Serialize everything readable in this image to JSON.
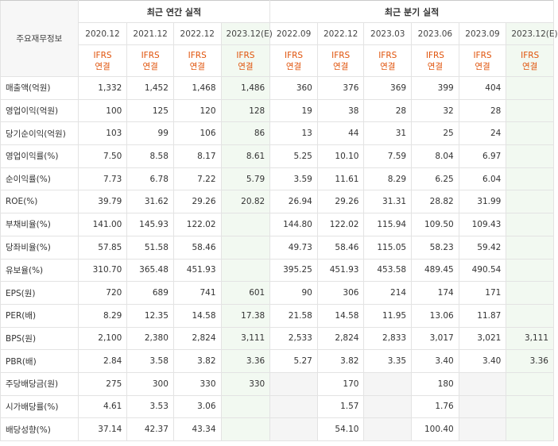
{
  "header": {
    "corner_label": "주요재무정보",
    "annual_group": "최근 연간 실적",
    "quarter_group": "최근 분기 실적",
    "periods": [
      "2020.12",
      "2021.12",
      "2022.12",
      "2023.12(E)",
      "2022.09",
      "2022.12",
      "2023.03",
      "2023.06",
      "2023.09",
      "2023.12(E)"
    ],
    "standard_top": "IFRS",
    "standard_bottom": "연결"
  },
  "rows": [
    {
      "label": "매출액(억원)",
      "values": [
        "1,332",
        "1,452",
        "1,468",
        "1,486",
        "360",
        "376",
        "369",
        "399",
        "404",
        ""
      ]
    },
    {
      "label": "영업이익(억원)",
      "values": [
        "100",
        "125",
        "120",
        "128",
        "19",
        "38",
        "28",
        "32",
        "28",
        ""
      ]
    },
    {
      "label": "당기순이익(억원)",
      "values": [
        "103",
        "99",
        "106",
        "86",
        "13",
        "44",
        "31",
        "25",
        "24",
        ""
      ]
    },
    {
      "label": "영업이익률(%)",
      "values": [
        "7.50",
        "8.58",
        "8.17",
        "8.61",
        "5.25",
        "10.10",
        "7.59",
        "8.04",
        "6.97",
        ""
      ]
    },
    {
      "label": "순이익률(%)",
      "values": [
        "7.73",
        "6.78",
        "7.22",
        "5.79",
        "3.59",
        "11.61",
        "8.29",
        "6.25",
        "6.04",
        ""
      ]
    },
    {
      "label": "ROE(%)",
      "values": [
        "39.79",
        "31.62",
        "29.26",
        "20.82",
        "26.94",
        "29.26",
        "31.31",
        "28.82",
        "31.99",
        ""
      ]
    },
    {
      "label": "부채비율(%)",
      "values": [
        "141.00",
        "145.93",
        "122.02",
        "",
        "144.80",
        "122.02",
        "115.94",
        "109.50",
        "109.43",
        ""
      ]
    },
    {
      "label": "당좌비율(%)",
      "values": [
        "57.85",
        "51.58",
        "58.46",
        "",
        "49.73",
        "58.46",
        "115.05",
        "58.23",
        "59.42",
        ""
      ]
    },
    {
      "label": "유보율(%)",
      "values": [
        "310.70",
        "365.48",
        "451.93",
        "",
        "395.25",
        "451.93",
        "453.58",
        "489.45",
        "490.54",
        ""
      ]
    },
    {
      "label": "EPS(원)",
      "values": [
        "720",
        "689",
        "741",
        "601",
        "90",
        "306",
        "214",
        "174",
        "171",
        ""
      ]
    },
    {
      "label": "PER(배)",
      "values": [
        "8.29",
        "12.35",
        "14.58",
        "17.38",
        "21.58",
        "14.58",
        "11.95",
        "13.06",
        "11.87",
        ""
      ]
    },
    {
      "label": "BPS(원)",
      "values": [
        "2,100",
        "2,380",
        "2,824",
        "3,111",
        "2,533",
        "2,824",
        "2,833",
        "3,017",
        "3,021",
        "3,111"
      ]
    },
    {
      "label": "PBR(배)",
      "values": [
        "2.84",
        "3.58",
        "3.82",
        "3.36",
        "5.27",
        "3.82",
        "3.35",
        "3.40",
        "3.40",
        "3.36"
      ]
    },
    {
      "label": "주당배당금(원)",
      "values": [
        "275",
        "300",
        "330",
        "330",
        "",
        "170",
        "",
        "180",
        "",
        ""
      ]
    },
    {
      "label": "시가배당률(%)",
      "values": [
        "4.61",
        "3.53",
        "3.06",
        "",
        "",
        "1.57",
        "",
        "1.76",
        "",
        ""
      ]
    },
    {
      "label": "배당성향(%)",
      "values": [
        "37.14",
        "42.37",
        "43.34",
        "",
        "",
        "54.10",
        "",
        "100.40",
        "",
        ""
      ]
    }
  ],
  "styles": {
    "ifrs_color": "#e0530b",
    "estimate_bg": "#f2f9f1",
    "blank_bg": "#f5f5f5",
    "corner_bg": "#f7f7f7"
  }
}
